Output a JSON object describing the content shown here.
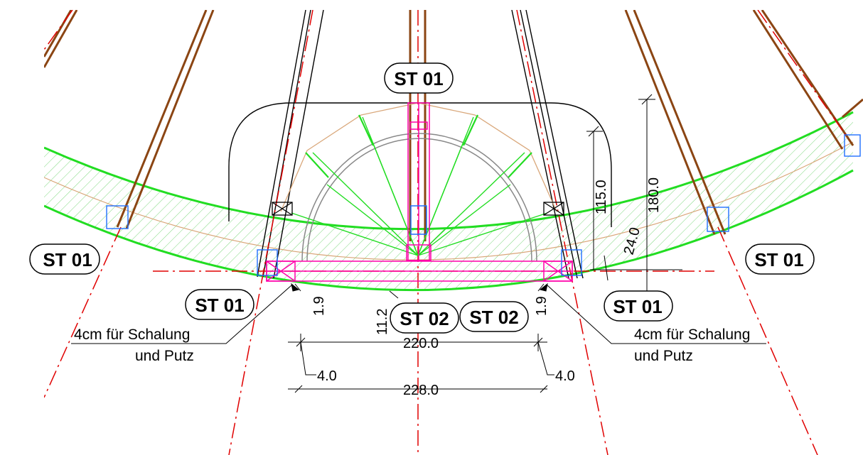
{
  "labels": {
    "st01_top": "ST 01",
    "st01_left": "ST 01",
    "st01_right": "ST 01",
    "st01_lower_left": "ST 01",
    "st01_lower_right": "ST 01",
    "st02_left": "ST 02",
    "st02_right": "ST 02"
  },
  "dimensions": {
    "d115": "115.0",
    "d180": "180.0",
    "d24": "24.0",
    "d19_left": "1.9",
    "d19_right": "1.9",
    "d112": "11.2",
    "d220": "220.0",
    "d228": "228.0",
    "d4_left": "4.0",
    "d4_right": "4.0"
  },
  "notes": {
    "left_line1": "4cm für Schalung",
    "left_line2": "und Putz",
    "right_line1": "4cm für Schalung",
    "right_line2": "und Putz"
  },
  "colors": {
    "timber": "#8b4513",
    "beam_green": "#22dd22",
    "hatch_green": "#7ed87e",
    "axis_red": "#e00000",
    "magenta": "#ff00aa",
    "blue": "#1f6fff",
    "tan": "#d9a77a"
  }
}
